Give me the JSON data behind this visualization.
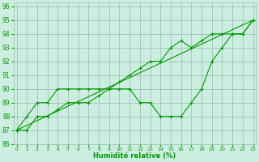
{
  "xlabel": "Humidité relative (%)",
  "bg_color": "#cceee0",
  "grid_color": "#99bbaa",
  "line_color": "#009900",
  "xlim": [
    -0.3,
    23.3
  ],
  "ylim": [
    86,
    96.3
  ],
  "yticks": [
    86,
    87,
    88,
    89,
    90,
    91,
    92,
    93,
    94,
    95,
    96
  ],
  "xticks": [
    0,
    1,
    2,
    3,
    4,
    5,
    6,
    7,
    8,
    9,
    10,
    11,
    12,
    13,
    14,
    15,
    16,
    17,
    18,
    19,
    20,
    21,
    22,
    23
  ],
  "line1_x": [
    0,
    1,
    2,
    3,
    4,
    5,
    6,
    7,
    8,
    9,
    10,
    11,
    12,
    13,
    14,
    15,
    16,
    17,
    18,
    19,
    20,
    21,
    22,
    23
  ],
  "line1_y": [
    87,
    88,
    89,
    89,
    90,
    90,
    90,
    90,
    90,
    90,
    90,
    90,
    89,
    89,
    88,
    88,
    88,
    89,
    90,
    92,
    93,
    94,
    94,
    95
  ],
  "line2_x": [
    0,
    23
  ],
  "line2_y": [
    87,
    95
  ],
  "line3_x": [
    0,
    1,
    2,
    3,
    4,
    5,
    6,
    7,
    8,
    9,
    10,
    11,
    12,
    13,
    14,
    15,
    16,
    17,
    18,
    19,
    20,
    21,
    22,
    23
  ],
  "line3_y": [
    87,
    87,
    88,
    88,
    88.5,
    89,
    89,
    89,
    89.5,
    90,
    90.5,
    91,
    91.5,
    92,
    92,
    93,
    93.5,
    93,
    93.5,
    94,
    94,
    94,
    94,
    95
  ]
}
